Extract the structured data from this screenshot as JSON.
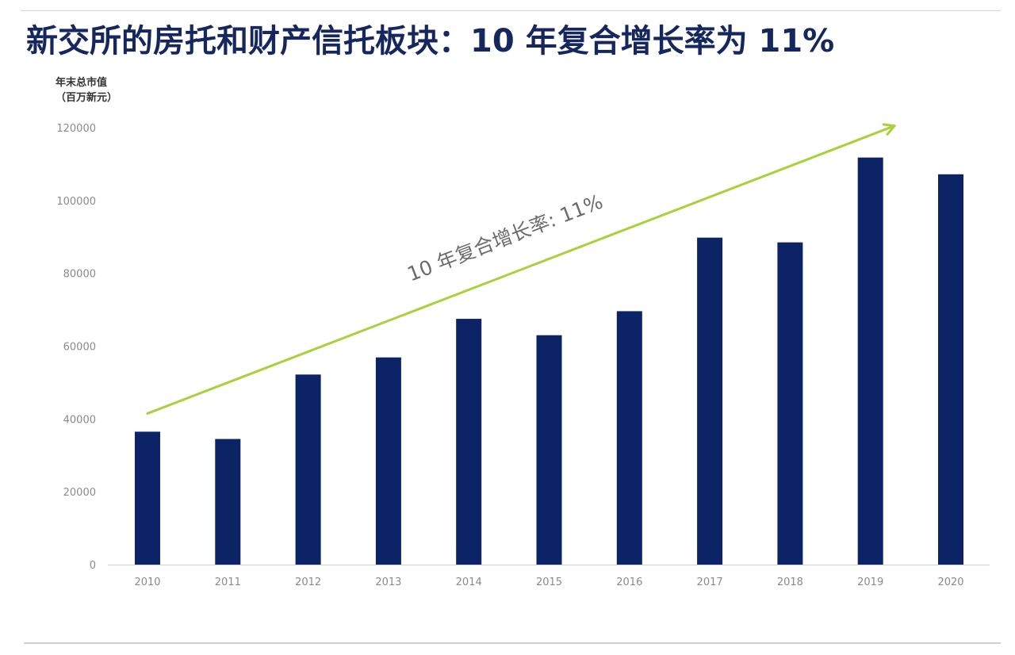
{
  "page": {
    "title": "新交所的房托和财产信托板块：10 年复合增长率为 11%"
  },
  "colors": {
    "title": "#16275e",
    "bar": "#0c2366",
    "trend_arrow": "#a9d13b",
    "axis": "#d0d0d0",
    "tick_text": "#8a8a8a"
  },
  "chart_data": {
    "type": "bar",
    "title": "",
    "ylabel_lines": [
      "年末总市值",
      "（百万新元）"
    ],
    "xlabel": "",
    "categories": [
      "2010",
      "2011",
      "2012",
      "2013",
      "2014",
      "2015",
      "2016",
      "2017",
      "2018",
      "2019",
      "2020"
    ],
    "values": [
      36500,
      34500,
      52200,
      56900,
      67500,
      63000,
      69600,
      89800,
      88500,
      111800,
      107200
    ],
    "ylim": [
      0,
      120000
    ],
    "yticks": [
      0,
      20000,
      40000,
      60000,
      80000,
      100000,
      120000
    ],
    "grid": false,
    "legend": "none",
    "annotation": {
      "text": "10 年复合增长率: 11%",
      "trend_start": {
        "x": "2010",
        "y": 41500
      },
      "trend_end": {
        "x": "2019.3",
        "y": 120500
      }
    }
  }
}
